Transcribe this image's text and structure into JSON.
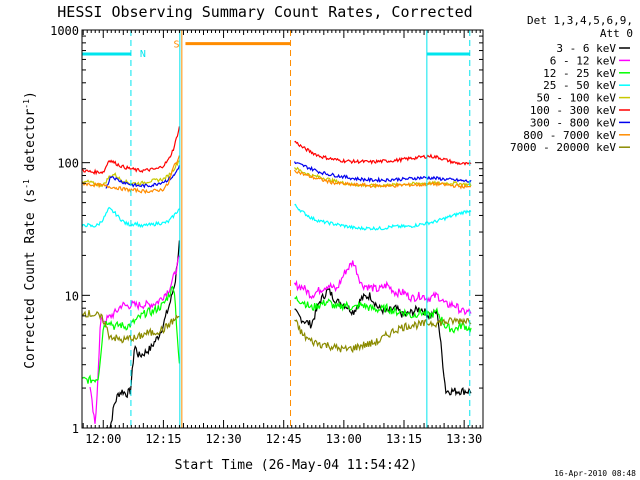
{
  "chart_data": {
    "type": "line",
    "title": "HESSI Observing Summary Count Rates, Corrected",
    "xlabel": "Start Time (26-May-04 11:54:42)",
    "ylabel_main": "Corrected Count Rate (s",
    "ylabel_sup1": "-1",
    "ylabel_mid": " detector",
    "ylabel_sup2": "-1",
    "ylabel_end": ")",
    "yscale": "log",
    "xlim_min": [
      0,
      100
    ],
    "ylim": [
      1,
      1000
    ],
    "x_ticks": [
      {
        "min": 5.3,
        "label": "12:00"
      },
      {
        "min": 20.3,
        "label": "12:15"
      },
      {
        "min": 35.3,
        "label": "12:30"
      },
      {
        "min": 50.3,
        "label": "12:45"
      },
      {
        "min": 65.3,
        "label": "13:00"
      },
      {
        "min": 80.3,
        "label": "13:15"
      },
      {
        "min": 95.3,
        "label": "13:30"
      }
    ],
    "y_ticks": [
      {
        "value": 1,
        "label": "1"
      },
      {
        "value": 10,
        "label": "10"
      },
      {
        "value": 100,
        "label": "100"
      },
      {
        "value": 1000,
        "label": "1000"
      }
    ],
    "legend_header": [
      "Det 1,3,4,5,6,9,",
      "Att 0"
    ],
    "footer_date": "16-Apr-2010 08:48",
    "night_label": "N",
    "saa_label": "S",
    "night_color": "#00e5ee",
    "saa_color": "#ff8c00",
    "night_flags": [
      {
        "x0": 0.0,
        "x1": 12.2,
        "level": 660
      },
      {
        "x0": 86.0,
        "x1": 96.7,
        "level": 660
      }
    ],
    "saa_flags": [
      {
        "x0": 25.8,
        "x1": 52.0,
        "level": 790
      }
    ],
    "boundaries": [
      {
        "min": 12.2,
        "color": "#00e5ee",
        "style": "dashed"
      },
      {
        "min": 24.4,
        "color": "#00e5ee",
        "style": "solid"
      },
      {
        "min": 24.9,
        "color": "#ff8c00",
        "style": "solid"
      },
      {
        "min": 52.0,
        "color": "#ff8c00",
        "style": "dashed"
      },
      {
        "min": 86.0,
        "color": "#00e5ee",
        "style": "solid"
      },
      {
        "min": 96.7,
        "color": "#00e5ee",
        "style": "dashed"
      }
    ],
    "series": [
      {
        "name": "3 - 6 keV",
        "color": "#000000",
        "seg1": {
          "x0": 6.0,
          "x1": 24.3,
          "y": [
            1.0,
            1.0,
            1.5,
            1.8,
            1.9,
            1.8,
            1.9,
            4.2,
            3.5,
            3.6,
            3.8,
            4.0,
            4.5,
            5.0,
            6.0,
            7.5,
            9.5,
            13.0,
            25.0
          ]
        },
        "seg2": {
          "x0": 53.0,
          "x1": 97.0,
          "y": [
            7.5,
            6.5,
            6.0,
            9.0,
            11.0,
            9.0,
            8.5,
            7.5,
            9.5,
            10.0,
            8.0,
            7.5,
            8.0,
            7.0,
            7.5,
            8.0,
            7.0,
            7.5,
            1.9,
            1.9,
            1.9,
            1.9
          ]
        }
      },
      {
        "name": "6 - 12 keV",
        "color": "#ff00ff",
        "seg1": {
          "x0": 2.0,
          "x1": 24.3,
          "y": [
            2.0,
            1.0,
            6.5,
            6.5,
            7.0,
            7.5,
            8.5,
            8.3,
            8.5,
            8.4,
            8.5,
            8.5,
            8.6,
            9.0,
            10.0,
            11.0,
            14.0,
            19.0
          ]
        },
        "seg2": {
          "x0": 53.0,
          "x1": 97.0,
          "y": [
            12.0,
            11.5,
            10.0,
            11.0,
            12.0,
            11.0,
            15.0,
            18.0,
            12.0,
            11.5,
            11.0,
            12.0,
            10.5,
            10.5,
            9.5,
            10.0,
            9.5,
            10.0,
            8.5,
            8.5,
            7.5,
            7.5
          ]
        }
      },
      {
        "name": "12 - 25 keV",
        "color": "#00ff00",
        "seg1": {
          "x0": 0.0,
          "x1": 24.3,
          "y": [
            2.3,
            2.3,
            2.3,
            2.4,
            6.0,
            6.5,
            5.8,
            6.0,
            5.8,
            6.0,
            6.5,
            7.0,
            7.5,
            7.5,
            8.0,
            8.5,
            10.0,
            12.0,
            2.9
          ]
        },
        "seg2": {
          "x0": 53.0,
          "x1": 97.0,
          "y": [
            9.5,
            9.0,
            8.0,
            8.5,
            9.0,
            8.0,
            8.5,
            8.0,
            8.5,
            8.0,
            7.8,
            8.0,
            7.5,
            7.5,
            7.0,
            7.5,
            7.0,
            7.5,
            5.8,
            5.5,
            6.0,
            5.5
          ]
        }
      },
      {
        "name": "25 - 50 keV",
        "color": "#00ffff",
        "seg1": {
          "x0": 0.0,
          "x1": 24.3,
          "y": [
            33,
            34,
            33,
            34,
            38,
            45,
            42,
            38,
            35,
            34,
            35,
            33,
            34,
            34,
            35,
            35,
            36,
            40,
            45
          ]
        },
        "seg2": {
          "x0": 53.0,
          "x1": 97.0,
          "y": [
            48,
            42,
            38,
            36,
            35,
            34,
            33,
            32,
            32,
            32,
            32,
            33,
            33,
            33,
            34,
            35,
            36,
            38,
            40,
            42,
            44
          ]
        }
      },
      {
        "name": "50 - 100 keV",
        "color": "#c8c800",
        "seg1": {
          "x0": 0.0,
          "x1": 24.3,
          "y": [
            70,
            72,
            70,
            68,
            68,
            78,
            82,
            75,
            72,
            70,
            70,
            70,
            72,
            73,
            74,
            75,
            80,
            90,
            105
          ]
        },
        "seg2": {
          "x0": 53.0,
          "x1": 97.0,
          "y": [
            92,
            85,
            80,
            78,
            75,
            72,
            70,
            68,
            68,
            67,
            67,
            68,
            68,
            69,
            69,
            70,
            70,
            70,
            70,
            70,
            69,
            68
          ]
        }
      },
      {
        "name": "100 - 300 keV",
        "color": "#ff0000",
        "seg1": {
          "x0": 0.0,
          "x1": 24.3,
          "y": [
            88,
            86,
            85,
            85,
            85,
            105,
            100,
            95,
            92,
            90,
            88,
            87,
            88,
            89,
            90,
            95,
            105,
            130,
            185
          ]
        },
        "seg2": {
          "x0": 53.0,
          "x1": 97.0,
          "y": [
            145,
            130,
            120,
            112,
            108,
            105,
            103,
            102,
            102,
            101,
            102,
            103,
            104,
            106,
            108,
            110,
            112,
            110,
            105,
            100,
            98,
            97
          ]
        }
      },
      {
        "name": "300 - 800 keV",
        "color": "#0000ee",
        "seg1": {
          "x0": 6.0,
          "x1": 24.3,
          "y": [
            65,
            80,
            75,
            72,
            70,
            68,
            67,
            67,
            67,
            68,
            70,
            72,
            75,
            80,
            95
          ]
        },
        "seg2": {
          "x0": 53.0,
          "x1": 97.0,
          "y": [
            100,
            95,
            90,
            85,
            82,
            80,
            78,
            76,
            75,
            74,
            74,
            74,
            75,
            75,
            76,
            77,
            77,
            76,
            75,
            74,
            73,
            72
          ]
        }
      },
      {
        "name": "800 - 7000 keV",
        "color": "#ff8c00",
        "seg1": {
          "x0": 0.0,
          "x1": 24.3,
          "y": [
            70,
            69,
            68,
            68,
            67,
            66,
            65,
            64,
            63,
            62,
            62,
            61,
            61,
            61,
            62,
            63,
            70,
            95,
            110
          ]
        },
        "seg2": {
          "x0": 53.0,
          "x1": 97.0,
          "y": [
            88,
            82,
            78,
            75,
            72,
            70,
            69,
            68,
            68,
            67,
            67,
            67,
            67,
            68,
            68,
            68,
            69,
            69,
            68,
            67,
            66,
            65
          ]
        }
      },
      {
        "name": "7000 - 20000 keV",
        "color": "#8b8b00",
        "seg1": {
          "x0": 0.0,
          "x1": 24.3,
          "y": [
            7.5,
            7.3,
            7.2,
            7.0,
            6.5,
            5.0,
            4.8,
            4.6,
            4.6,
            4.8,
            4.7,
            5.0,
            5.2,
            5.2,
            5.4,
            5.5,
            6.0,
            6.5,
            7.0
          ]
        },
        "seg2": {
          "x0": 53.0,
          "x1": 97.0,
          "y": [
            6.5,
            5.0,
            4.5,
            4.3,
            4.2,
            4.0,
            3.9,
            4.0,
            4.2,
            4.3,
            4.5,
            5.0,
            5.5,
            5.8,
            6.0,
            6.0,
            6.2,
            6.2,
            6.3,
            6.4,
            6.5,
            6.5
          ]
        }
      }
    ]
  }
}
